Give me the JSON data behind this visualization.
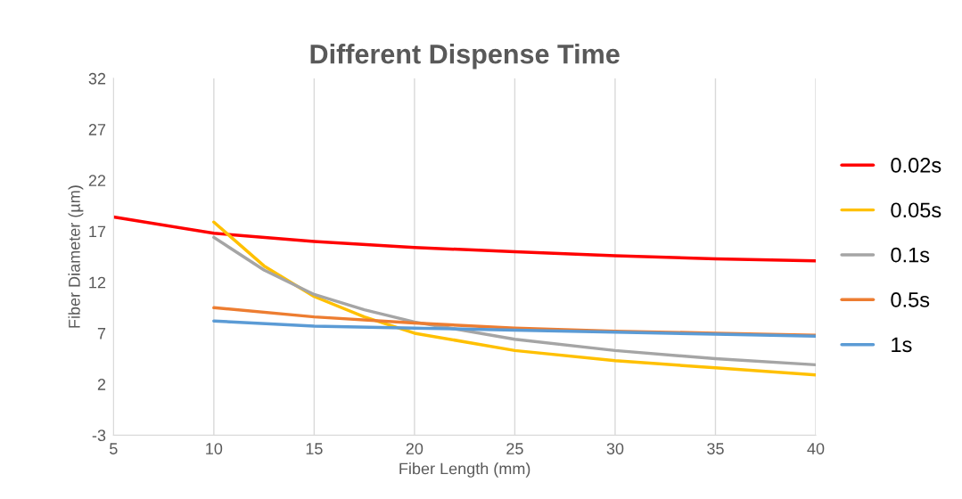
{
  "chart_data": {
    "type": "line",
    "title": "Different Dispense Time",
    "xlabel": "Fiber Length (mm)",
    "ylabel": "Fiber Diameter (µm)",
    "xlim": [
      5,
      40
    ],
    "xticks": [
      5,
      10,
      15,
      20,
      25,
      30,
      35,
      40
    ],
    "ylim": [
      -3,
      32
    ],
    "yticks": [
      -3,
      2,
      7,
      12,
      17,
      22,
      27,
      32
    ],
    "grid": "x",
    "legend": "right",
    "marker": "none",
    "line_style": "solid",
    "series": [
      {
        "name": "0.02s",
        "color": "#ff0000",
        "x": [
          5,
          10,
          15,
          20,
          25,
          30,
          35,
          40
        ],
        "values": [
          18.4,
          16.8,
          16.0,
          15.4,
          15.0,
          14.6,
          14.3,
          14.1
        ]
      },
      {
        "name": "0.05s",
        "color": "#ffc000",
        "x": [
          10,
          12.5,
          15,
          17.5,
          20,
          25,
          30,
          35,
          40
        ],
        "values": [
          17.9,
          13.6,
          10.6,
          8.6,
          7.0,
          5.3,
          4.3,
          3.6,
          2.9
        ]
      },
      {
        "name": "0.1s",
        "color": "#a5a5a5",
        "x": [
          10,
          12.5,
          15,
          17.5,
          20,
          25,
          30,
          35,
          40
        ],
        "values": [
          16.4,
          13.2,
          10.8,
          9.3,
          8.1,
          6.4,
          5.3,
          4.5,
          3.9
        ]
      },
      {
        "name": "0.5s",
        "color": "#ed7d31",
        "x": [
          10,
          15,
          20,
          25,
          30,
          35,
          40
        ],
        "values": [
          9.5,
          8.6,
          8.0,
          7.5,
          7.2,
          7.0,
          6.8
        ]
      },
      {
        "name": "1s",
        "color": "#5b9bd5",
        "x": [
          10,
          15,
          20,
          25,
          30,
          35,
          40
        ],
        "values": [
          8.2,
          7.7,
          7.5,
          7.3,
          7.1,
          6.9,
          6.7
        ]
      }
    ]
  }
}
